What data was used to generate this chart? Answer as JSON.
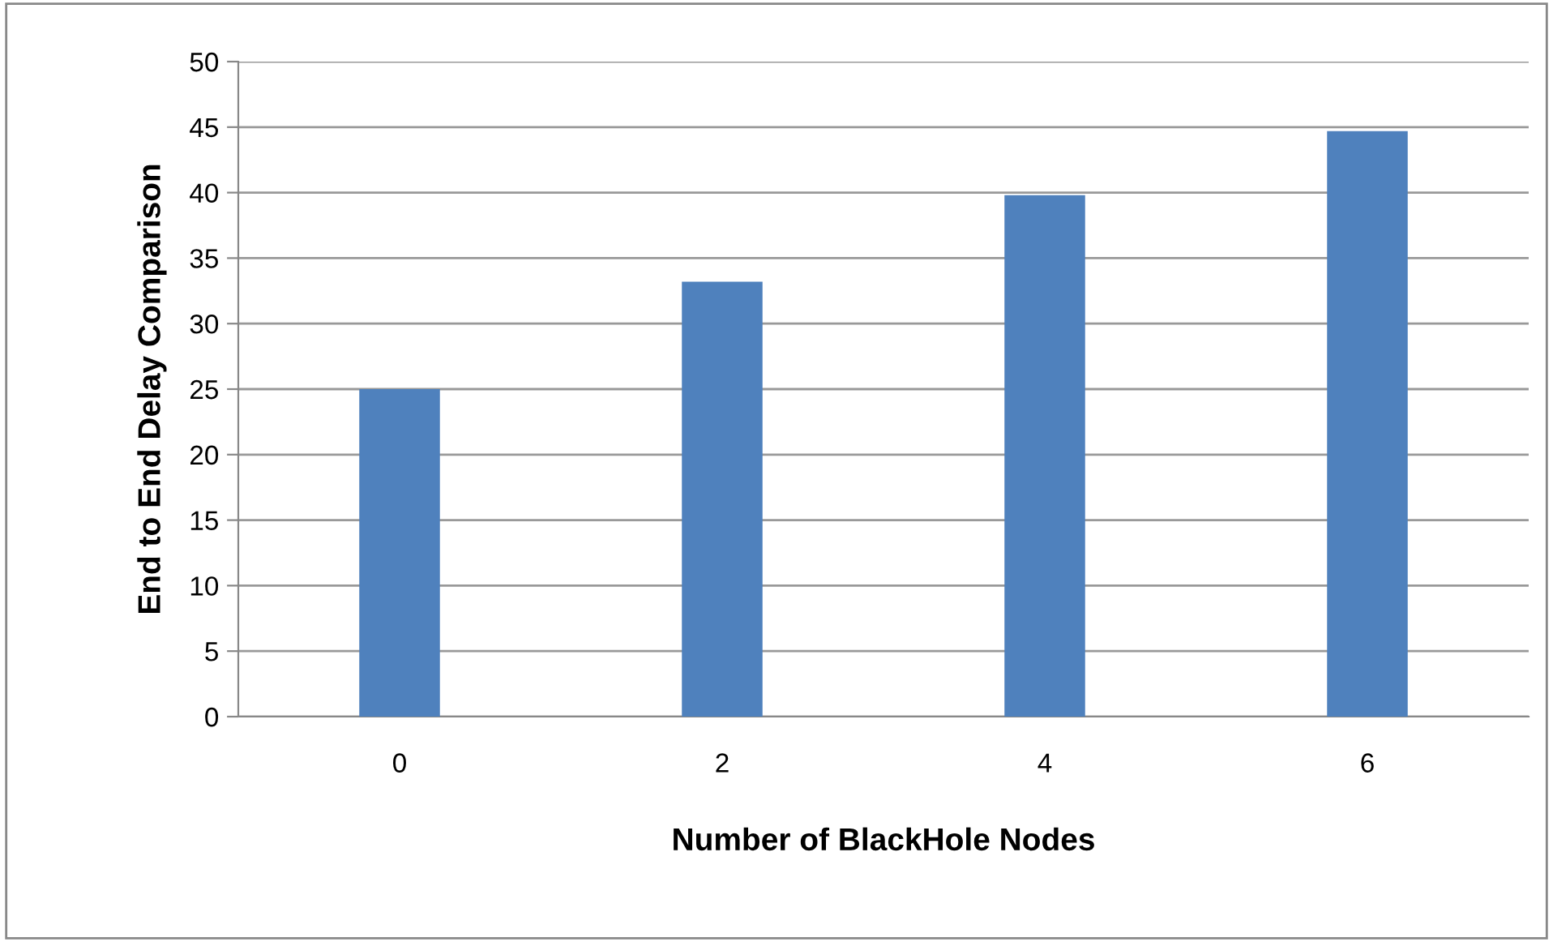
{
  "chart_data": {
    "type": "bar",
    "xlabel": "Number of BlackHole Nodes",
    "ylabel": "End to End Delay Comparison",
    "categories": [
      "0",
      "2",
      "4",
      "6"
    ],
    "series": [
      {
        "color": "#4f81bd",
        "values": [
          25,
          33.2,
          39.8,
          44.7
        ]
      }
    ],
    "ylim": [
      0,
      50
    ],
    "yticks": [
      0,
      5,
      10,
      15,
      20,
      25,
      30,
      35,
      40,
      45,
      50
    ],
    "grid": "y"
  }
}
